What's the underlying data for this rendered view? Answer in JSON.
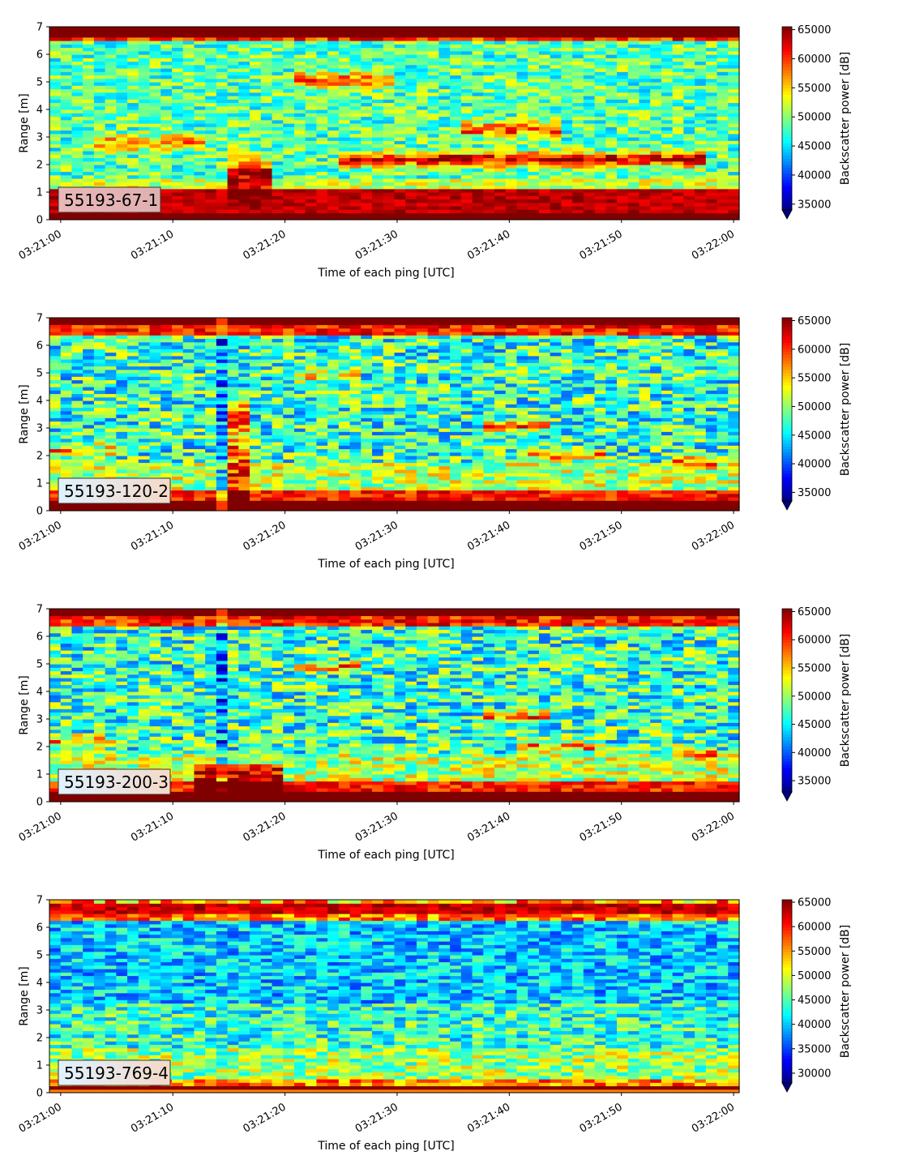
{
  "chart_data": [
    {
      "type": "heatmap",
      "panel_label": "55193-67-1",
      "xlabel": "Time of each ping [UTC]",
      "ylabel": "Range [m]",
      "xlim": [
        "03:21:00",
        "03:22:00"
      ],
      "ylim": [
        0,
        7
      ],
      "x_ticks": [
        "03:21:00",
        "03:21:10",
        "03:21:20",
        "03:21:30",
        "03:21:40",
        "03:21:50",
        "03:22:00"
      ],
      "y_ticks": [
        "0",
        "1",
        "2",
        "3",
        "4",
        "5",
        "6",
        "7"
      ],
      "colorbar": {
        "label": "Backscatter power [dB]",
        "colormap": "jet",
        "vmin": 34000,
        "vmax": 65500,
        "ticks": [
          "35000",
          "40000",
          "45000",
          "50000",
          "55000",
          "60000",
          "65000"
        ],
        "extend": "min"
      }
    },
    {
      "type": "heatmap",
      "panel_label": "55193-120-2",
      "xlabel": "Time of each ping [UTC]",
      "ylabel": "Range [m]",
      "xlim": [
        "03:21:00",
        "03:22:00"
      ],
      "ylim": [
        0,
        7
      ],
      "x_ticks": [
        "03:21:00",
        "03:21:10",
        "03:21:20",
        "03:21:30",
        "03:21:40",
        "03:21:50",
        "03:22:00"
      ],
      "y_ticks": [
        "0",
        "1",
        "2",
        "3",
        "4",
        "5",
        "6",
        "7"
      ],
      "colorbar": {
        "label": "Backscatter power [dB]",
        "colormap": "jet",
        "vmin": 33500,
        "vmax": 65500,
        "ticks": [
          "35000",
          "40000",
          "45000",
          "50000",
          "55000",
          "60000",
          "65000"
        ],
        "extend": "min"
      }
    },
    {
      "type": "heatmap",
      "panel_label": "55193-200-3",
      "xlabel": "Time of each ping [UTC]",
      "ylabel": "Range [m]",
      "xlim": [
        "03:21:00",
        "03:22:00"
      ],
      "ylim": [
        0,
        7
      ],
      "x_ticks": [
        "03:21:00",
        "03:21:10",
        "03:21:20",
        "03:21:30",
        "03:21:40",
        "03:21:50",
        "03:22:00"
      ],
      "y_ticks": [
        "0",
        "1",
        "2",
        "3",
        "4",
        "5",
        "6",
        "7"
      ],
      "colorbar": {
        "label": "Backscatter power [dB]",
        "colormap": "jet",
        "vmin": 33000,
        "vmax": 65500,
        "ticks": [
          "35000",
          "40000",
          "45000",
          "50000",
          "55000",
          "60000",
          "65000"
        ],
        "extend": "min"
      }
    },
    {
      "type": "heatmap",
      "panel_label": "55193-769-4",
      "xlabel": "Time of each ping [UTC]",
      "ylabel": "Range [m]",
      "xlim": [
        "03:21:00",
        "03:22:00"
      ],
      "ylim": [
        0,
        7
      ],
      "x_ticks": [
        "03:21:00",
        "03:21:10",
        "03:21:20",
        "03:21:30",
        "03:21:40",
        "03:21:50",
        "03:22:00"
      ],
      "y_ticks": [
        "0",
        "1",
        "2",
        "3",
        "4",
        "5",
        "6",
        "7"
      ],
      "colorbar": {
        "label": "Backscatter power [dB]",
        "colormap": "jet",
        "vmin": 28000,
        "vmax": 65500,
        "ticks": [
          "30000",
          "35000",
          "40000",
          "45000",
          "50000",
          "55000",
          "60000",
          "65000"
        ],
        "extend": "min"
      }
    }
  ]
}
